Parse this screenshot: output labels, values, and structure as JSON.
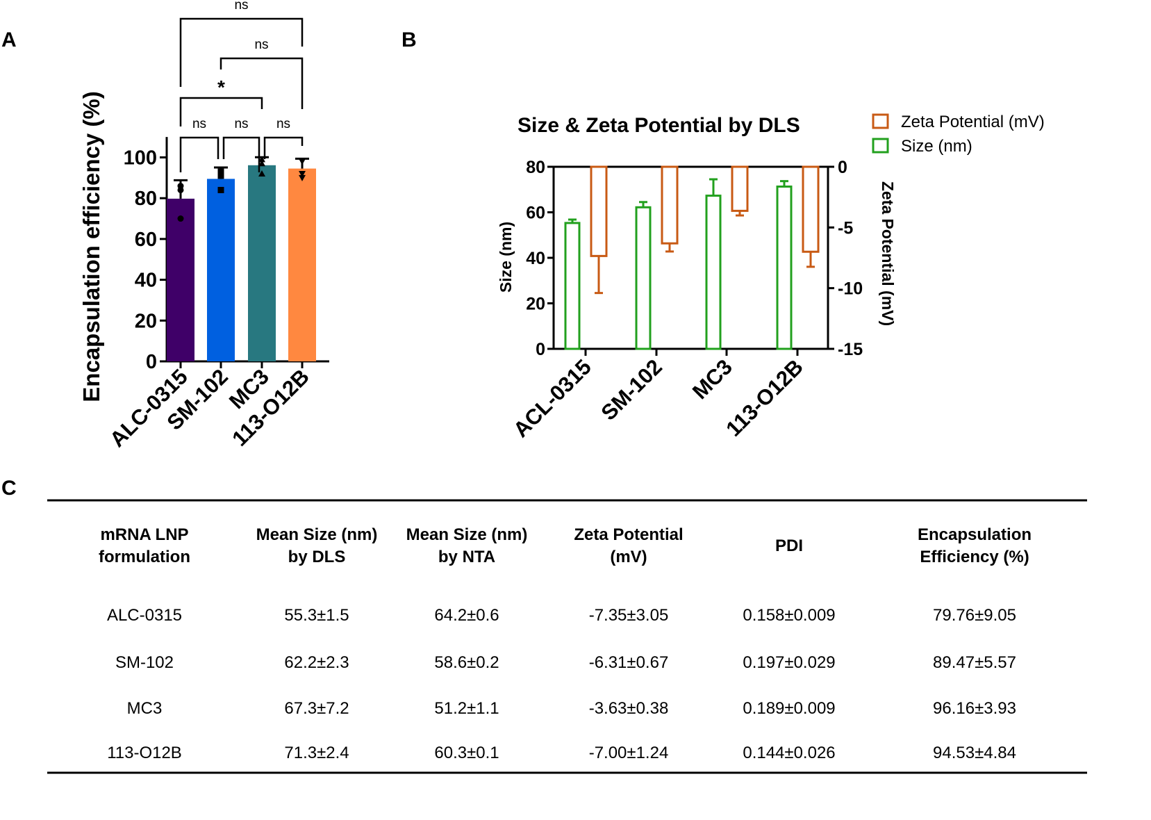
{
  "panels": {
    "a": "A",
    "b": "B",
    "c": "C"
  },
  "chart_data": [
    {
      "type": "bar",
      "panel": "A",
      "ylabel": "Encapsulation efficiency  (%)",
      "ylim": [
        0,
        110
      ],
      "yticks": [
        0,
        20,
        40,
        60,
        80,
        100
      ],
      "categories": [
        "ALC-0315",
        "SM-102",
        "MC3",
        "113-O12B"
      ],
      "values": [
        79.76,
        89.47,
        96.16,
        94.53
      ],
      "errors": [
        9.05,
        5.57,
        3.93,
        4.84
      ],
      "points": [
        [
          70,
          84,
          86
        ],
        [
          84,
          91,
          93
        ],
        [
          92,
          97,
          99
        ],
        [
          90,
          92,
          98
        ]
      ],
      "markers": [
        "circle",
        "square",
        "triangle-up",
        "triangle-down"
      ],
      "colors": [
        "#3f0068",
        "#0060e0",
        "#287880",
        "#ff8840"
      ],
      "comparisons": [
        {
          "from": 0,
          "to": 1,
          "label": "ns"
        },
        {
          "from": 1,
          "to": 2,
          "label": "ns"
        },
        {
          "from": 2,
          "to": 3,
          "label": "ns"
        },
        {
          "from": 0,
          "to": 2,
          "label": "*"
        },
        {
          "from": 1,
          "to": 3,
          "label": "ns"
        },
        {
          "from": 0,
          "to": 3,
          "label": "ns"
        }
      ]
    },
    {
      "type": "bar",
      "panel": "B",
      "title": "Size & Zeta Potential by DLS",
      "categories": [
        "ACL-0315",
        "SM-102",
        "MC3",
        "113-O12B"
      ],
      "ylabel": "Size (nm)",
      "ylim": [
        0,
        80
      ],
      "yticks": [
        0,
        20,
        40,
        60,
        80
      ],
      "y2label": "Zeta Potential (mV)",
      "y2lim": [
        -15,
        0
      ],
      "y2ticks": [
        0,
        -5,
        -10,
        -15
      ],
      "legend_position": "top-right",
      "series": [
        {
          "name": "Zeta Potential (mV)",
          "axis": "right",
          "color": "#c85a14",
          "values": [
            -7.35,
            -6.31,
            -3.63,
            -7.0
          ],
          "errors": [
            3.05,
            0.67,
            0.38,
            1.24
          ]
        },
        {
          "name": "Size (nm)",
          "axis": "left",
          "color": "#22a01e",
          "values": [
            55.3,
            62.2,
            67.3,
            71.3
          ],
          "errors": [
            1.5,
            2.3,
            7.2,
            2.4
          ]
        }
      ]
    }
  ],
  "table": {
    "headers": [
      [
        "mRNA LNP",
        "formulation"
      ],
      [
        "Mean Size (nm)",
        "by DLS"
      ],
      [
        "Mean Size (nm)",
        "by NTA"
      ],
      [
        "Zeta Potential",
        "(mV)"
      ],
      [
        "PDI"
      ],
      [
        "Encapsulation",
        "Efficiency (%)"
      ]
    ],
    "rows": [
      [
        "ALC-0315",
        "55.3±1.5",
        "64.2±0.6",
        "-7.35±3.05",
        "0.158±0.009",
        "79.76±9.05"
      ],
      [
        "SM-102",
        "62.2±2.3",
        "58.6±0.2",
        "-6.31±0.67",
        "0.197±0.029",
        "89.47±5.57"
      ],
      [
        "MC3",
        "67.3±7.2",
        "51.2±1.1",
        "-3.63±0.38",
        "0.189±0.009",
        "96.16±3.93"
      ],
      [
        "113-O12B",
        "71.3±2.4",
        "60.3±0.1",
        "-7.00±1.24",
        "0.144±0.026",
        "94.53±4.84"
      ]
    ]
  }
}
